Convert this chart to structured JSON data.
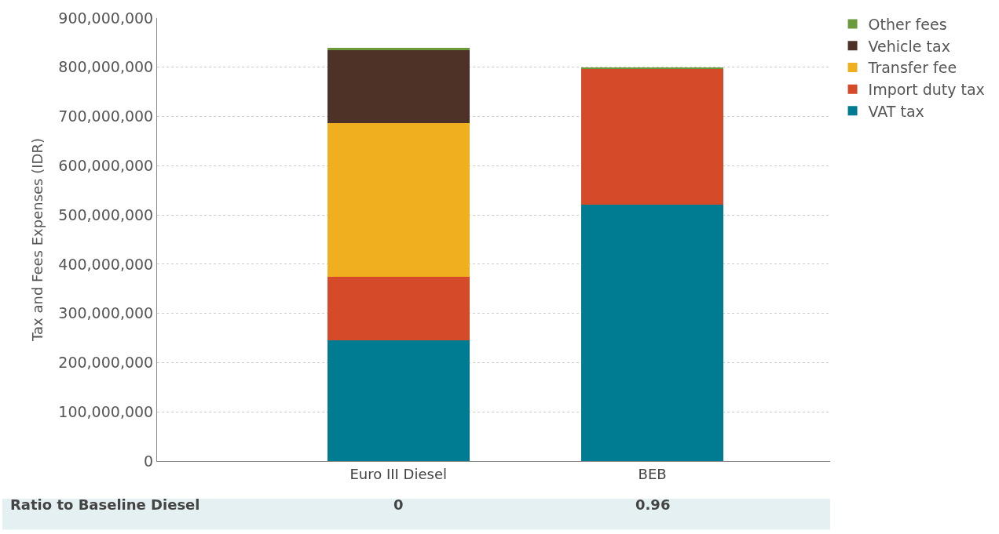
{
  "chart_data": {
    "type": "bar",
    "stacked": true,
    "ylabel": "Tax and Fees Expenses (IDR)",
    "categories": [
      "Euro III Diesel",
      "BEB"
    ],
    "series": [
      {
        "name": "VAT tax",
        "color": "#007c92",
        "values": [
          245000000,
          521000000
        ]
      },
      {
        "name": "Import duty tax",
        "color": "#d54a28",
        "values": [
          130000000,
          277000000
        ]
      },
      {
        "name": "Transfer fee",
        "color": "#f0af1e",
        "values": [
          312000000,
          0
        ]
      },
      {
        "name": "Vehicle tax",
        "color": "#4e3227",
        "values": [
          149000000,
          0
        ]
      },
      {
        "name": "Other fees",
        "color": "#6a9a3a",
        "values": [
          3000000,
          2000000
        ]
      }
    ],
    "ylim": [
      0,
      900000000
    ],
    "yticks": [
      {
        "value": 0,
        "label": "0"
      },
      {
        "value": 100000000,
        "label": "100,000,000"
      },
      {
        "value": 200000000,
        "label": "200,000,000"
      },
      {
        "value": 300000000,
        "label": "300,000,000"
      },
      {
        "value": 400000000,
        "label": "400,000,000"
      },
      {
        "value": 500000000,
        "label": "500,000,000"
      },
      {
        "value": 600000000,
        "label": "600,000,000"
      },
      {
        "value": 700000000,
        "label": "700,000,000"
      },
      {
        "value": 800000000,
        "label": "800,000,000"
      },
      {
        "value": 900000000,
        "label": "900,000,000"
      }
    ],
    "grid": "y",
    "legend": "top right",
    "annotations": [
      "Ratio to Baseline Diesel",
      "0",
      "0.96"
    ]
  }
}
